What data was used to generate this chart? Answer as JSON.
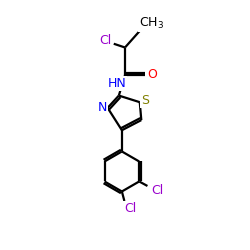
{
  "bg_color": "#ffffff",
  "bond_color": "#000000",
  "bond_width": 1.6,
  "figsize": [
    2.5,
    2.5
  ],
  "dpi": 100,
  "colors": {
    "N": "#0000ff",
    "O": "#ff0000",
    "S": "#808000",
    "Cl": "#9900cc",
    "C": "#000000"
  },
  "fontsize": 9.0
}
